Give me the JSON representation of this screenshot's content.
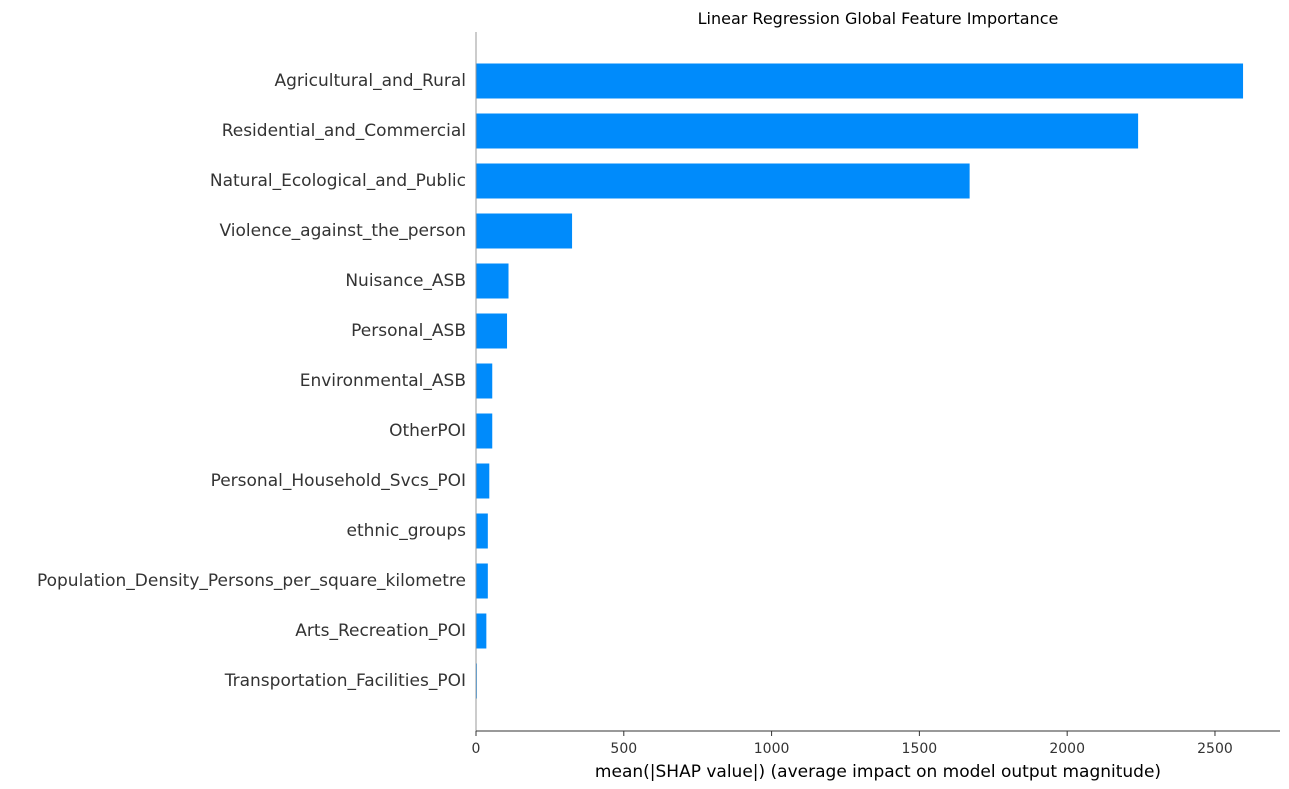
{
  "chart_data": {
    "type": "bar",
    "orientation": "horizontal",
    "title": "Linear Regression Global Feature Importance",
    "xlabel": "mean(|SHAP value|) (average impact on model output magnitude)",
    "ylabel": "",
    "categories": [
      "Agricultural_and_Rural",
      "Residential_and_Commercial",
      "Natural_Ecological_and_Public",
      "Violence_against_the_person",
      "Nuisance_ASB",
      "Personal_ASB",
      "Environmental_ASB",
      "OtherPOI",
      "Personal_Household_Svcs_POI",
      "ethnic_groups",
      "Population_Density_Persons_per_square_kilometre",
      "Arts_Recreation_POI",
      "Transportation_Facilities_POI"
    ],
    "values": [
      2595,
      2240,
      1670,
      325,
      110,
      105,
      55,
      55,
      45,
      40,
      40,
      35,
      3
    ],
    "xlim": [
      0,
      2720
    ],
    "xticks": [
      0,
      500,
      1000,
      1500,
      2000,
      2500
    ],
    "grid": false,
    "legend": "none",
    "bar_color": "#008bfb",
    "axis_color": "#999999",
    "text_color": "#333333"
  }
}
